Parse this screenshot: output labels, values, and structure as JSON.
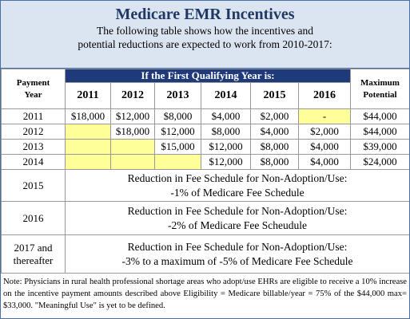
{
  "header": {
    "title": "Medicare EMR Incentives",
    "subtitle": [
      "The following table shows how the incentives and",
      "potential reductions are expected to work from 2010-2017:"
    ]
  },
  "table": {
    "group_header": "If the First Qualifying Year is:",
    "columns": [
      "Payment Year",
      "2011",
      "2012",
      "2013",
      "2014",
      "2015",
      "2016",
      "Maximum Potential"
    ],
    "rows": [
      [
        "2011",
        "$18,000",
        "$12,000",
        "$8,000",
        "$4,000",
        "$2,000",
        {
          "text": "-",
          "highlight": true
        },
        "$44,000"
      ],
      [
        "2012",
        null,
        "$18,000",
        "$12,000",
        "$8,000",
        "$4,000",
        "$2,000",
        "$44,000"
      ],
      [
        "2013",
        null,
        null,
        "$15,000",
        "$12,000",
        "$8,000",
        "$4,000",
        "$39,000"
      ],
      [
        "2014",
        null,
        null,
        null,
        "$12,000",
        "$8,000",
        "$4,000",
        "$24,000"
      ]
    ],
    "reduction_rows": [
      {
        "year": "2015",
        "lines": [
          "Reduction in Fee Schedule for Non-Adoption/Use:",
          "-1% of Medicare Fee Schedule"
        ]
      },
      {
        "year": "2016",
        "lines": [
          "Reduction in Fee Schedule for Non-Adoption/Use:",
          "-2% of Medicare Fee Scheudule"
        ]
      },
      {
        "year": "2017 and thereafter",
        "lines": [
          "Reduction in Fee Schedule for Non-Adoption/Use:",
          "-3% to a maximum of -5% of Medicare Fee Schedule"
        ]
      }
    ],
    "highlight_color": "#ffff99"
  },
  "note": "Note: Physicians in rural health professional shortage areas who adopt/use EHRs are eligible to receive a 10% increase on the incentive payment amounts described above   Eligibility = Medicare billable/year = 75% of the $44,000 max= $33,000. \"Meaningful Use\" is yet to be defined."
}
